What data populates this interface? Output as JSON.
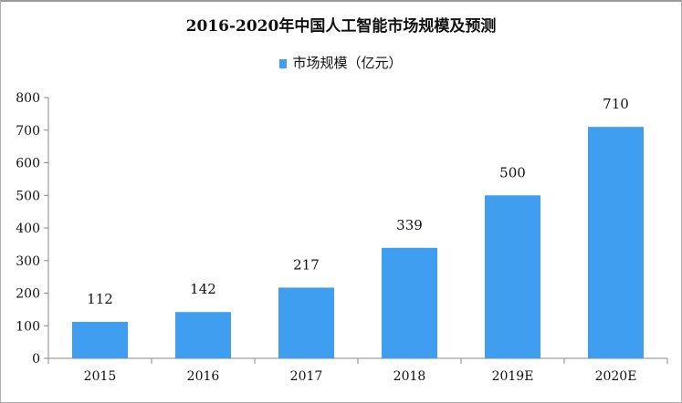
{
  "chart_data": {
    "type": "bar",
    "title": "2016-2020年中国人工智能市场规模及预测",
    "categories": [
      "2015",
      "2016",
      "2017",
      "2018",
      "2019E",
      "2020E"
    ],
    "series": [
      {
        "name": "市场规模（亿元）",
        "values": [
          112,
          142,
          217,
          339,
          500,
          710
        ]
      }
    ],
    "data_labels": [
      "112",
      "142",
      "217",
      "339",
      "500",
      "710"
    ],
    "yticks": [
      "0",
      "100",
      "200",
      "300",
      "400",
      "500",
      "600",
      "700",
      "800"
    ],
    "ylim": [
      0,
      800
    ],
    "grid": false,
    "legend": "top-center",
    "colors": {
      "bar": "#3f9ef0"
    }
  }
}
